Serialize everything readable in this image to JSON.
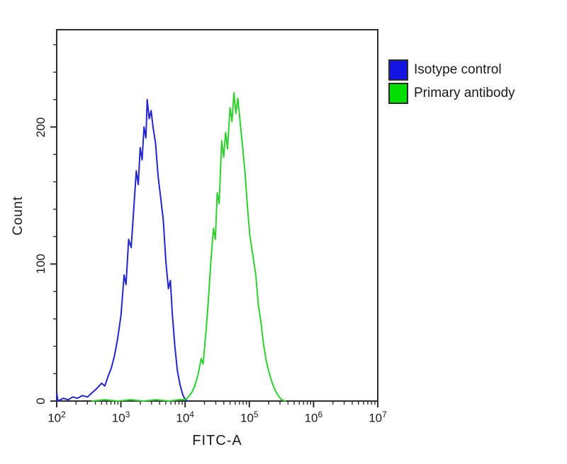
{
  "figure": {
    "title": "",
    "x_axis_label": "FITC-A",
    "y_axis_label": "Count"
  },
  "legend": {
    "position": "outside-top-right",
    "items": [
      {
        "label": "Isotype control",
        "color": "#1414e0"
      },
      {
        "label": "Primary antibody",
        "color": "#00dd00"
      }
    ]
  },
  "colors": {
    "axis": "#2e2e2e",
    "text": "#1a1a1a",
    "background": "#ffffff",
    "isotype_curve": "#2525cc",
    "primary_curve": "#2ecf2e"
  },
  "chart_data": {
    "type": "line",
    "subtype": "flow-cytometry-overlay-histogram",
    "title": "",
    "xlabel": "FITC-A",
    "ylabel": "Count",
    "x_scale": "log10",
    "xlim_exponents": [
      2,
      7
    ],
    "x_tick_exponents": [
      2,
      3,
      4,
      5,
      6,
      7
    ],
    "x_tick_base": "10",
    "ylim": [
      0,
      271
    ],
    "y_ticks": [
      0,
      100,
      200
    ],
    "y_minor_tick_step": 20,
    "grid": false,
    "legend_position": "outside-top-right",
    "series": [
      {
        "name": "Isotype control",
        "color": "#2525cc",
        "peak_log10x": 3.41,
        "peak_count": 220,
        "points": [
          [
            2.0,
            6
          ],
          [
            2.02,
            0
          ],
          [
            2.1,
            2
          ],
          [
            2.18,
            1
          ],
          [
            2.25,
            3
          ],
          [
            2.32,
            2
          ],
          [
            2.4,
            4
          ],
          [
            2.48,
            3
          ],
          [
            2.55,
            6
          ],
          [
            2.62,
            9
          ],
          [
            2.7,
            13
          ],
          [
            2.75,
            11
          ],
          [
            2.8,
            18
          ],
          [
            2.85,
            24
          ],
          [
            2.9,
            33
          ],
          [
            2.95,
            46
          ],
          [
            3.0,
            62
          ],
          [
            3.05,
            92
          ],
          [
            3.08,
            85
          ],
          [
            3.12,
            118
          ],
          [
            3.16,
            112
          ],
          [
            3.2,
            140
          ],
          [
            3.24,
            168
          ],
          [
            3.27,
            158
          ],
          [
            3.3,
            185
          ],
          [
            3.33,
            176
          ],
          [
            3.36,
            200
          ],
          [
            3.39,
            192
          ],
          [
            3.41,
            220
          ],
          [
            3.44,
            206
          ],
          [
            3.47,
            212
          ],
          [
            3.5,
            200
          ],
          [
            3.54,
            188
          ],
          [
            3.58,
            164
          ],
          [
            3.62,
            148
          ],
          [
            3.66,
            132
          ],
          [
            3.7,
            102
          ],
          [
            3.74,
            82
          ],
          [
            3.77,
            88
          ],
          [
            3.8,
            64
          ],
          [
            3.84,
            40
          ],
          [
            3.88,
            22
          ],
          [
            3.92,
            12
          ],
          [
            3.96,
            5
          ],
          [
            4.0,
            1
          ],
          [
            4.05,
            0
          ]
        ]
      },
      {
        "name": "Primary antibody",
        "color": "#2ecf2e",
        "peak_log10x": 4.76,
        "peak_count": 225,
        "points": [
          [
            2.55,
            0
          ],
          [
            2.75,
            1
          ],
          [
            2.95,
            0
          ],
          [
            3.15,
            1
          ],
          [
            3.35,
            0
          ],
          [
            3.55,
            1
          ],
          [
            3.75,
            0
          ],
          [
            3.9,
            1
          ],
          [
            4.0,
            1
          ],
          [
            4.05,
            3
          ],
          [
            4.1,
            6
          ],
          [
            4.15,
            11
          ],
          [
            4.2,
            19
          ],
          [
            4.25,
            31
          ],
          [
            4.28,
            27
          ],
          [
            4.32,
            48
          ],
          [
            4.36,
            72
          ],
          [
            4.4,
            101
          ],
          [
            4.44,
            126
          ],
          [
            4.47,
            118
          ],
          [
            4.5,
            152
          ],
          [
            4.53,
            144
          ],
          [
            4.57,
            190
          ],
          [
            4.6,
            178
          ],
          [
            4.63,
            196
          ],
          [
            4.66,
            184
          ],
          [
            4.7,
            214
          ],
          [
            4.73,
            204
          ],
          [
            4.76,
            225
          ],
          [
            4.79,
            210
          ],
          [
            4.82,
            221
          ],
          [
            4.85,
            207
          ],
          [
            4.89,
            188
          ],
          [
            4.93,
            168
          ],
          [
            4.97,
            142
          ],
          [
            5.01,
            120
          ],
          [
            5.05,
            108
          ],
          [
            5.1,
            92
          ],
          [
            5.14,
            70
          ],
          [
            5.18,
            58
          ],
          [
            5.22,
            42
          ],
          [
            5.26,
            30
          ],
          [
            5.3,
            22
          ],
          [
            5.35,
            14
          ],
          [
            5.4,
            8
          ],
          [
            5.45,
            4
          ],
          [
            5.5,
            1
          ],
          [
            5.56,
            0
          ]
        ]
      }
    ]
  }
}
